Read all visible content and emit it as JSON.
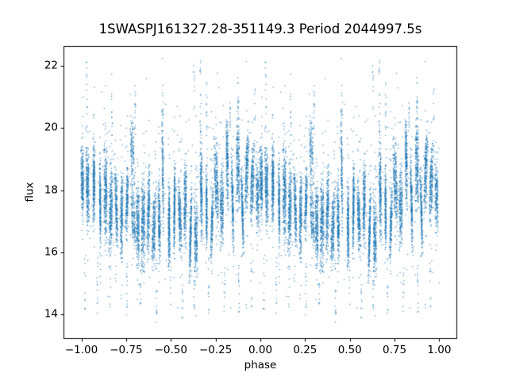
{
  "chart_data": {
    "type": "scatter",
    "title": "1SWASPJ161327.28-351149.3 Period 2044997.5s",
    "xlabel": "phase",
    "ylabel": "flux",
    "xlim": [
      -1.1,
      1.1
    ],
    "ylim": [
      13.2,
      22.65
    ],
    "xticks": [
      -1.0,
      -0.75,
      -0.5,
      -0.25,
      0.0,
      0.25,
      0.5,
      0.75,
      1.0
    ],
    "xtick_labels": [
      "−1.00",
      "−0.75",
      "−0.50",
      "−0.25",
      "0.00",
      "0.25",
      "0.50",
      "0.75",
      "1.00"
    ],
    "yticks": [
      14,
      16,
      18,
      20,
      22
    ],
    "ytick_labels": [
      "14",
      "16",
      "18",
      "20",
      "22"
    ],
    "grid": false,
    "legend": null,
    "marker": "point",
    "marker_color": "#1f77b4",
    "marker_alpha": 0.72,
    "marker_size_px": 1.3,
    "axis_color": "#000000",
    "background_color": "#ffffff",
    "mirrored_fold": true,
    "seed": 42,
    "phase_data_range": [
      0,
      1
    ],
    "flux_data_range": [
      13.65,
      22.3
    ],
    "streak_phase_width_max": 0.014,
    "streak_slant": 0.012,
    "streak_outlier_fraction": 0.055,
    "streaks": [
      [
        0.005,
        18.3,
        1.8,
        240
      ],
      [
        0.035,
        18.0,
        2.2,
        260
      ],
      [
        0.07,
        18.2,
        2.4,
        280
      ],
      [
        0.105,
        17.6,
        2.2,
        240
      ],
      [
        0.135,
        17.9,
        2.6,
        280
      ],
      [
        0.165,
        17.4,
        2.4,
        260
      ],
      [
        0.195,
        17.5,
        2.2,
        220
      ],
      [
        0.225,
        17.2,
        2.2,
        240
      ],
      [
        0.255,
        17.6,
        2.0,
        200
      ],
      [
        0.285,
        19.2,
        2.2,
        130
      ],
      [
        0.29,
        17.1,
        1.8,
        160
      ],
      [
        0.315,
        16.9,
        2.2,
        240
      ],
      [
        0.345,
        16.9,
        2.6,
        280
      ],
      [
        0.375,
        17.3,
        2.4,
        240
      ],
      [
        0.405,
        16.8,
        2.2,
        240
      ],
      [
        0.435,
        17.0,
        2.2,
        220
      ],
      [
        0.455,
        18.6,
        3.2,
        170
      ],
      [
        0.49,
        16.9,
        2.2,
        260
      ],
      [
        0.52,
        17.4,
        2.4,
        260
      ],
      [
        0.55,
        17.1,
        2.2,
        240
      ],
      [
        0.58,
        17.6,
        2.4,
        240
      ],
      [
        0.61,
        16.6,
        2.6,
        260
      ],
      [
        0.64,
        16.5,
        2.4,
        240
      ],
      [
        0.67,
        17.9,
        2.6,
        240
      ],
      [
        0.7,
        17.4,
        2.2,
        220
      ],
      [
        0.73,
        16.9,
        2.0,
        200
      ],
      [
        0.755,
        18.2,
        2.4,
        260
      ],
      [
        0.785,
        17.5,
        2.4,
        240
      ],
      [
        0.815,
        18.9,
        2.4,
        220
      ],
      [
        0.845,
        17.6,
        2.8,
        240
      ],
      [
        0.875,
        18.8,
        2.4,
        240
      ],
      [
        0.9,
        17.3,
        2.2,
        220
      ],
      [
        0.925,
        18.6,
        2.2,
        240
      ],
      [
        0.955,
        18.2,
        2.2,
        240
      ],
      [
        0.985,
        17.8,
        2.0,
        200
      ]
    ],
    "high_outlier_columns": [
      [
        0.03,
        20.0,
        22.3,
        12
      ],
      [
        0.17,
        19.5,
        21.8,
        14
      ],
      [
        0.3,
        19.8,
        21.4,
        16
      ],
      [
        0.455,
        20.0,
        21.2,
        10
      ],
      [
        0.63,
        20.5,
        22.3,
        10
      ],
      [
        0.665,
        19.8,
        22.2,
        18
      ],
      [
        0.7,
        20.0,
        21.6,
        12
      ],
      [
        0.83,
        19.8,
        21.0,
        14
      ],
      [
        0.875,
        19.8,
        21.5,
        16
      ],
      [
        0.97,
        20.2,
        21.3,
        8
      ]
    ],
    "low_outlier_columns": [
      [
        0.02,
        14.0,
        15.8,
        10
      ],
      [
        0.09,
        13.8,
        15.9,
        12
      ],
      [
        0.16,
        14.2,
        16.0,
        10
      ],
      [
        0.255,
        13.9,
        15.8,
        12
      ],
      [
        0.33,
        14.0,
        15.9,
        12
      ],
      [
        0.42,
        13.7,
        15.8,
        14
      ],
      [
        0.5,
        14.0,
        16.0,
        10
      ],
      [
        0.565,
        13.8,
        15.9,
        12
      ],
      [
        0.63,
        13.9,
        15.6,
        12
      ],
      [
        0.71,
        13.8,
        15.8,
        12
      ],
      [
        0.8,
        14.0,
        15.9,
        10
      ],
      [
        0.88,
        13.7,
        15.7,
        14
      ],
      [
        0.95,
        14.1,
        15.9,
        10
      ]
    ],
    "background_scatter": {
      "count": 380,
      "flux_mean": 17.9,
      "flux_sigma": 1.3
    }
  }
}
